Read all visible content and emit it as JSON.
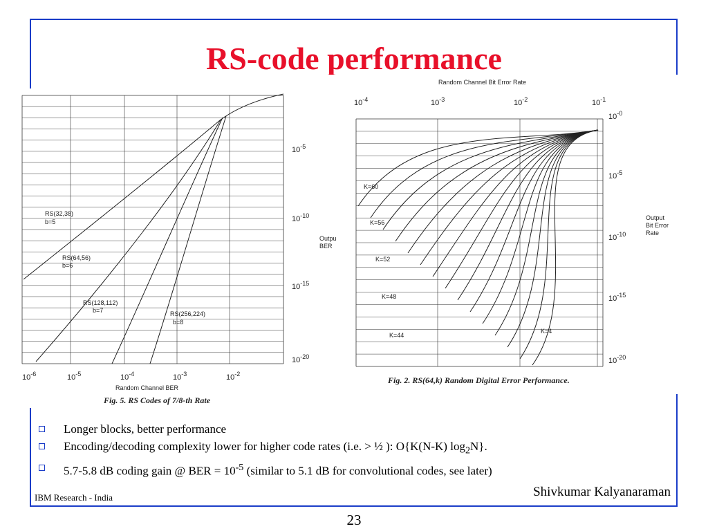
{
  "title": "RS-code performance",
  "fig5": {
    "caption": "Fig. 5.   RS Codes of 7/8-th Rate",
    "x_axis_label": "Random Channel BER",
    "x_ticks": [
      {
        "base": "10",
        "exp": "-6"
      },
      {
        "base": "10",
        "exp": "-5"
      },
      {
        "base": "10",
        "exp": "-4"
      },
      {
        "base": "10",
        "exp": "-3"
      },
      {
        "base": "10",
        "exp": "-2"
      }
    ],
    "y_ticks": [
      {
        "base": "10",
        "exp": "-5"
      },
      {
        "base": "10",
        "exp": "-10"
      },
      {
        "base": "10",
        "exp": "-15"
      },
      {
        "base": "10",
        "exp": "-20"
      }
    ],
    "curves": [
      {
        "name": "RS(32,38)",
        "sub": "b=5"
      },
      {
        "name": "RS(64,56)",
        "sub": "b=6"
      },
      {
        "name": "RS(128,112)",
        "sub": "b=7"
      },
      {
        "name": "RS(256,224)",
        "sub": "b=8"
      }
    ]
  },
  "fig2": {
    "caption": "Fig. 2.   RS(64,k) Random Digital Error Performance.",
    "top_axis_label": "Random Channel Bit Error Rate",
    "x_ticks": [
      {
        "base": "10",
        "exp": "-4"
      },
      {
        "base": "10",
        "exp": "-3"
      },
      {
        "base": "10",
        "exp": "-2"
      },
      {
        "base": "10",
        "exp": "-1"
      }
    ],
    "y_ticks": [
      {
        "base": "10",
        "exp": "-0"
      },
      {
        "base": "10",
        "exp": "-5"
      },
      {
        "base": "10",
        "exp": "-10"
      },
      {
        "base": "10",
        "exp": "-15"
      },
      {
        "base": "10",
        "exp": "-20"
      }
    ],
    "left_axis_label": [
      "Outpu",
      "BER"
    ],
    "right_axis_label": [
      "Output",
      "Bit Error",
      "Rate"
    ],
    "k_labels": [
      "K=60",
      "K=56",
      "K=52",
      "K=48",
      "K=44",
      "K=4"
    ]
  },
  "bullets": [
    {
      "text": "Longer blocks, better performance"
    },
    {
      "pre": "Encoding/decoding complexity lower for higher code rates (i.e. > ½ ): O{K(N-K) log",
      "sub": "2",
      "post": "N}."
    },
    {
      "pre": "5.7-5.8 dB coding gain @ BER = 10",
      "sup": "-5",
      "post": " (similar to 5.1 dB for convolutional codes, see later)"
    }
  ],
  "footer_left": "IBM Research - India",
  "footer_right": "Shivkumar Kalyanaraman",
  "page_number": "23",
  "colors": {
    "title": "#e8102a",
    "frame": "#1a3cc8"
  }
}
